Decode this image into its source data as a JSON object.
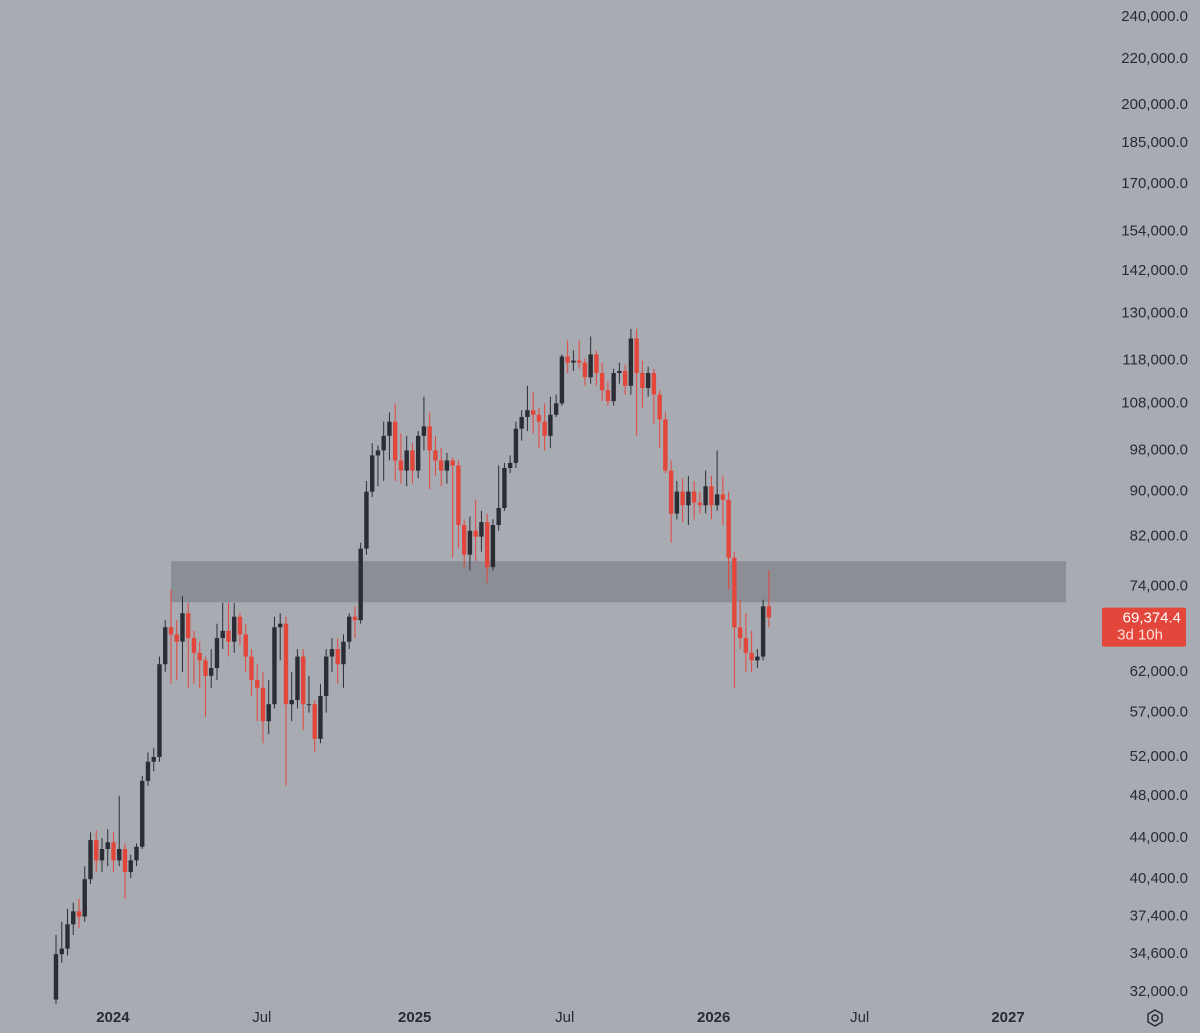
{
  "chart_data": {
    "type": "candlestick",
    "log_scale": true,
    "grid": false,
    "colors": {
      "up": "#2b2d35",
      "down": "#e3463a",
      "background": "#a9abb3",
      "zone": "#8c8e96"
    },
    "ylim": [
      31150,
      248600
    ],
    "xlim": [
      -9.74,
      181.6
    ],
    "yticks": [
      {
        "value": 240000,
        "label": "240,000.0"
      },
      {
        "value": 220000,
        "label": "220,000.0"
      },
      {
        "value": 200000,
        "label": "200,000.0"
      },
      {
        "value": 185000,
        "label": "185,000.0"
      },
      {
        "value": 170000,
        "label": "170,000.0"
      },
      {
        "value": 154000,
        "label": "154,000.0"
      },
      {
        "value": 142000,
        "label": "142,000.0"
      },
      {
        "value": 130000,
        "label": "130,000.0"
      },
      {
        "value": 118000,
        "label": "118,000.0"
      },
      {
        "value": 108000,
        "label": "108,000.0"
      },
      {
        "value": 98000,
        "label": "98,000.0"
      },
      {
        "value": 90000,
        "label": "90,000.0"
      },
      {
        "value": 82000,
        "label": "82,000.0"
      },
      {
        "value": 74000,
        "label": "74,000.0"
      },
      {
        "value": 62000,
        "label": "62,000.0"
      },
      {
        "value": 57000,
        "label": "57,000.0"
      },
      {
        "value": 52000,
        "label": "52,000.0"
      },
      {
        "value": 48000,
        "label": "48,000.0"
      },
      {
        "value": 44000,
        "label": "44,000.0"
      },
      {
        "value": 40400,
        "label": "40,400.0"
      },
      {
        "value": 37400,
        "label": "37,400.0"
      },
      {
        "value": 34600,
        "label": "34,600.0"
      },
      {
        "value": 32000,
        "label": "32,000.0"
      }
    ],
    "xticks": [
      {
        "value": 9.9,
        "label": "2024"
      },
      {
        "value": 35.8,
        "label": "Jul"
      },
      {
        "value": 62.4,
        "label": "2025"
      },
      {
        "value": 88.5,
        "label": "Jul"
      },
      {
        "value": 114.4,
        "label": "2026"
      },
      {
        "value": 139.8,
        "label": "Jul"
      },
      {
        "value": 165.6,
        "label": "2027"
      }
    ],
    "zone": {
      "low": 71600,
      "high": 77950
    },
    "last_price": {
      "value": 69374.4,
      "label": "69,374.4"
    },
    "countdown": "3d 10h",
    "open": [
      31500,
      34600,
      35000,
      36800,
      37800,
      37400,
      40400,
      43800,
      42000,
      43000,
      43600,
      42000,
      43000,
      41000,
      42000,
      43200,
      49500,
      51500,
      52000,
      63000,
      68000,
      67000,
      66000,
      70000,
      66500,
      64500,
      63500,
      61500,
      62500,
      66500,
      67500,
      66000,
      69500,
      67000,
      64000,
      61000,
      60000,
      56000,
      58000,
      68000,
      68500,
      58000,
      58500,
      64000,
      58000,
      58000,
      54000,
      59000,
      64000,
      65000,
      63000,
      66000,
      69500,
      69000,
      80000,
      90000,
      97000,
      98000,
      101000,
      104000,
      96000,
      94000,
      98000,
      94000,
      101000,
      103000,
      98000,
      96000,
      94000,
      96000,
      95000,
      84000,
      79000,
      83000,
      82000,
      84500,
      77000,
      84000,
      87000,
      94500,
      95500,
      102500,
      105000,
      106500,
      105500,
      104000,
      101000,
      105500,
      108000,
      119000,
      117500,
      118000,
      117500,
      114000,
      119500,
      115000,
      111000,
      108500,
      115000,
      115500,
      112000,
      123500,
      115000,
      111500,
      115000,
      110000,
      104500,
      94000,
      86000,
      90000,
      87500,
      90000,
      88000,
      87500,
      91000,
      87500,
      89500,
      88500,
      78500,
      68000,
      66500,
      64500,
      63500,
      64000,
      71000
    ],
    "high": [
      36000,
      37000,
      38000,
      38500,
      38800,
      41500,
      44500,
      44700,
      44000,
      44800,
      44500,
      48000,
      43500,
      42500,
      43500,
      50000,
      52500,
      53000,
      64000,
      69000,
      73500,
      69000,
      72500,
      71500,
      67500,
      66000,
      64000,
      65000,
      68500,
      71500,
      71500,
      71500,
      70000,
      68500,
      65000,
      63000,
      62000,
      61000,
      69500,
      70000,
      69500,
      62000,
      65000,
      65000,
      61500,
      58500,
      60500,
      65000,
      66500,
      66500,
      67000,
      70000,
      71000,
      81000,
      92000,
      99500,
      99000,
      104000,
      106000,
      108000,
      101500,
      101000,
      99500,
      102000,
      109500,
      106000,
      101000,
      98500,
      97500,
      96500,
      96000,
      85000,
      85500,
      88500,
      86500,
      86000,
      85000,
      95000,
      95500,
      97000,
      104000,
      106500,
      112000,
      110500,
      107000,
      108000,
      109500,
      110000,
      119500,
      123000,
      120500,
      123000,
      118500,
      124000,
      120500,
      117500,
      113000,
      116000,
      117500,
      117000,
      126000,
      126000,
      118000,
      116500,
      116000,
      111000,
      106000,
      96000,
      92000,
      92500,
      93000,
      92000,
      90000,
      94000,
      93000,
      98000,
      93000,
      90000,
      79500,
      72000,
      70000,
      67500,
      65000,
      72000,
      76500
    ],
    "low": [
      31200,
      34000,
      34500,
      36000,
      36500,
      37000,
      40000,
      41000,
      41000,
      41500,
      41000,
      41500,
      38800,
      40500,
      41500,
      43000,
      49000,
      50500,
      51500,
      62000,
      60500,
      61000,
      62000,
      60000,
      60500,
      60000,
      56500,
      60000,
      61000,
      65000,
      64000,
      64500,
      65500,
      62000,
      59000,
      56000,
      53500,
      54500,
      57500,
      63500,
      49000,
      56000,
      57500,
      55000,
      57000,
      52500,
      53500,
      57000,
      62000,
      60500,
      60000,
      65000,
      66500,
      68500,
      79000,
      89000,
      91000,
      92000,
      96000,
      92000,
      91500,
      91000,
      91500,
      92500,
      98000,
      90500,
      93000,
      91000,
      91500,
      78500,
      80000,
      77000,
      76500,
      78000,
      79500,
      74500,
      76500,
      83000,
      86500,
      93500,
      94500,
      100000,
      102000,
      101500,
      98500,
      98000,
      98500,
      105000,
      107500,
      115000,
      115500,
      116000,
      112000,
      112500,
      112000,
      108500,
      107500,
      107500,
      112500,
      110000,
      110000,
      101000,
      107000,
      109500,
      103500,
      98500,
      93500,
      81000,
      85000,
      84500,
      84000,
      85000,
      86000,
      86000,
      85000,
      86500,
      84000,
      73500,
      60000,
      65000,
      62000,
      62000,
      62500,
      63500,
      68000
    ],
    "close": [
      34600,
      35000,
      36800,
      37800,
      37400,
      40400,
      43800,
      42000,
      43000,
      43600,
      42000,
      43000,
      41000,
      42000,
      43200,
      49500,
      51500,
      52000,
      63000,
      68000,
      67000,
      66000,
      70000,
      66500,
      64500,
      63500,
      61500,
      62500,
      66500,
      67500,
      66000,
      69500,
      67000,
      64000,
      61000,
      60000,
      56000,
      58000,
      68000,
      68500,
      58000,
      58500,
      64000,
      58000,
      58000,
      54000,
      59000,
      64000,
      65000,
      63000,
      66000,
      69500,
      69000,
      80000,
      90000,
      97000,
      98000,
      101000,
      104000,
      96000,
      94000,
      98000,
      94000,
      101000,
      103000,
      98000,
      96000,
      94000,
      96000,
      95000,
      84000,
      79000,
      83000,
      82000,
      84500,
      77000,
      84000,
      87000,
      94500,
      95500,
      102500,
      105000,
      106500,
      105500,
      104000,
      101000,
      105500,
      108000,
      119000,
      117500,
      118000,
      117500,
      114000,
      119500,
      115000,
      111000,
      108500,
      115000,
      115500,
      112000,
      123500,
      115000,
      111500,
      115000,
      110000,
      104500,
      94000,
      86000,
      90000,
      87500,
      90000,
      88000,
      87500,
      91000,
      87500,
      89500,
      88500,
      78500,
      68000,
      66500,
      64500,
      63500,
      64000,
      71000,
      69374.4
    ]
  }
}
